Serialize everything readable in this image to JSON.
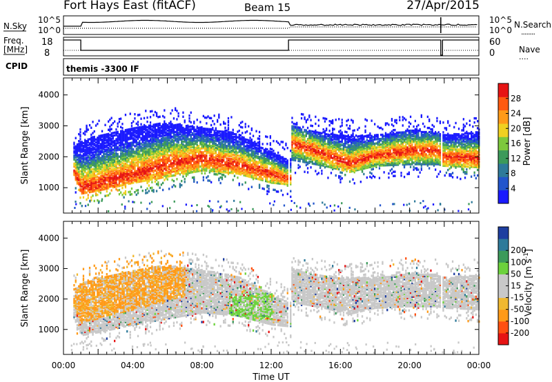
{
  "header": {
    "station": "Fort Hays East (fitACF)",
    "beam": "Beam 15",
    "date": "27/Apr/2015"
  },
  "panels": {
    "nsky": {
      "left_label": "N.Sky",
      "left_ticks": [
        "10^5",
        "10^0"
      ],
      "right_ticks": [
        "10^5",
        "10^0"
      ],
      "right_label": "N.Search",
      "right_line": "........"
    },
    "freq": {
      "left_label_1": "Freq.",
      "left_label_2": "[MHz]",
      "left_ticks": [
        "18",
        "8"
      ],
      "right_ticks": [
        "60",
        "0"
      ],
      "right_label": "Nave",
      "right_line": "...."
    },
    "cpid": {
      "label": "CPID",
      "value": "themis -3300 IF"
    }
  },
  "colors": {
    "power_scale": [
      "#1a1aff",
      "#2255cc",
      "#2e7a9a",
      "#3c9a5a",
      "#7dc83c",
      "#f0d020",
      "#ff9a18",
      "#ff5a10",
      "#e61414"
    ],
    "velocity_scale": [
      "#e61414",
      "#ff5010",
      "#ff9a18",
      "#f0b830",
      "#c8c8c8",
      "#c8c8c8",
      "#6cd23c",
      "#3c9a5a",
      "#2e7a9a",
      "#1e3ea0"
    ]
  },
  "chart_data": [
    {
      "type": "heatmap",
      "title": "Power",
      "xlabel": "Time UT",
      "ylabel": "Slant Range [km]",
      "x_ticks": [
        "00:00",
        "04:00",
        "08:00",
        "12:00",
        "16:00",
        "20:00",
        "00:00"
      ],
      "x_range_hours": [
        0,
        24
      ],
      "y_ticks": [
        1000,
        2000,
        3000,
        4000
      ],
      "ylim": [
        180,
        4550
      ],
      "colorbar": {
        "label": "Power [dB]",
        "ticks": [
          4,
          8,
          12,
          16,
          20,
          24,
          28
        ],
        "range": [
          0,
          32
        ]
      },
      "bands": [
        {
          "t": 0.5,
          "lo": 1450,
          "hi": 2300,
          "peak": 1650
        },
        {
          "t": 1.0,
          "lo": 800,
          "hi": 2500,
          "peak": 1000
        },
        {
          "t": 2.0,
          "lo": 900,
          "hi": 2700,
          "peak": 1150
        },
        {
          "t": 4.0,
          "lo": 1150,
          "hi": 2950,
          "peak": 1450
        },
        {
          "t": 6.0,
          "lo": 1350,
          "hi": 3100,
          "peak": 1750
        },
        {
          "t": 8.0,
          "lo": 1550,
          "hi": 2950,
          "peak": 1950
        },
        {
          "t": 10.0,
          "lo": 1450,
          "hi": 2750,
          "peak": 1750
        },
        {
          "t": 12.0,
          "lo": 1150,
          "hi": 2150,
          "peak": 1450
        },
        {
          "t": 12.9,
          "lo": 1100,
          "hi": 1900,
          "peak": 1300
        },
        {
          "t": 13.1,
          "lo": 1900,
          "hi": 3000,
          "peak": 2450
        },
        {
          "t": 15.0,
          "lo": 1700,
          "hi": 2750,
          "peak": 2100
        },
        {
          "t": 16.5,
          "lo": 1500,
          "hi": 2700,
          "peak": 1800
        },
        {
          "t": 18.0,
          "lo": 1700,
          "hi": 2700,
          "peak": 2050
        },
        {
          "t": 20.0,
          "lo": 1750,
          "hi": 2850,
          "peak": 2200
        },
        {
          "t": 21.6,
          "lo": 1750,
          "hi": 2800,
          "peak": 2200
        },
        {
          "t": 21.9,
          "lo": 1700,
          "hi": 2700,
          "peak": 2000
        },
        {
          "t": 24.0,
          "lo": 1650,
          "hi": 2800,
          "peak": 1950
        }
      ]
    },
    {
      "type": "heatmap",
      "title": "Velocity",
      "xlabel": "Time UT",
      "ylabel": "Slant Range [km]",
      "x_ticks": [
        "00:00",
        "04:00",
        "08:00",
        "12:00",
        "16:00",
        "20:00",
        "00:00"
      ],
      "x_range_hours": [
        0,
        24
      ],
      "y_ticks": [
        1000,
        2000,
        3000,
        4000
      ],
      "ylim": [
        180,
        4550
      ],
      "colorbar": {
        "label": "Velocity [m s-1]",
        "ticks": [
          -200,
          -100,
          -50,
          -15,
          15,
          50,
          100,
          200
        ],
        "range": [
          -250,
          250
        ]
      },
      "bands": [
        {
          "t": 0.5,
          "lo": 1450,
          "hi": 2300,
          "peak": 1650
        },
        {
          "t": 1.0,
          "lo": 800,
          "hi": 2500,
          "peak": 1000
        },
        {
          "t": 2.0,
          "lo": 900,
          "hi": 2700,
          "peak": 1150
        },
        {
          "t": 4.0,
          "lo": 1150,
          "hi": 2950,
          "peak": 1450
        },
        {
          "t": 6.0,
          "lo": 1350,
          "hi": 3100,
          "peak": 1750
        },
        {
          "t": 8.0,
          "lo": 1550,
          "hi": 2950,
          "peak": 1950
        },
        {
          "t": 10.0,
          "lo": 1450,
          "hi": 2750,
          "peak": 1750
        },
        {
          "t": 12.0,
          "lo": 1150,
          "hi": 2150,
          "peak": 1450
        },
        {
          "t": 12.9,
          "lo": 1100,
          "hi": 1900,
          "peak": 1300
        },
        {
          "t": 13.1,
          "lo": 1900,
          "hi": 3000,
          "peak": 2450
        },
        {
          "t": 15.0,
          "lo": 1700,
          "hi": 2750,
          "peak": 2100
        },
        {
          "t": 16.5,
          "lo": 1500,
          "hi": 2700,
          "peak": 1800
        },
        {
          "t": 18.0,
          "lo": 1700,
          "hi": 2700,
          "peak": 2050
        },
        {
          "t": 20.0,
          "lo": 1750,
          "hi": 2850,
          "peak": 2200
        },
        {
          "t": 21.6,
          "lo": 1750,
          "hi": 2800,
          "peak": 2200
        },
        {
          "t": 21.9,
          "lo": 1700,
          "hi": 2700,
          "peak": 2000
        },
        {
          "t": 24.0,
          "lo": 1650,
          "hi": 2800,
          "peak": 1950
        }
      ]
    }
  ]
}
